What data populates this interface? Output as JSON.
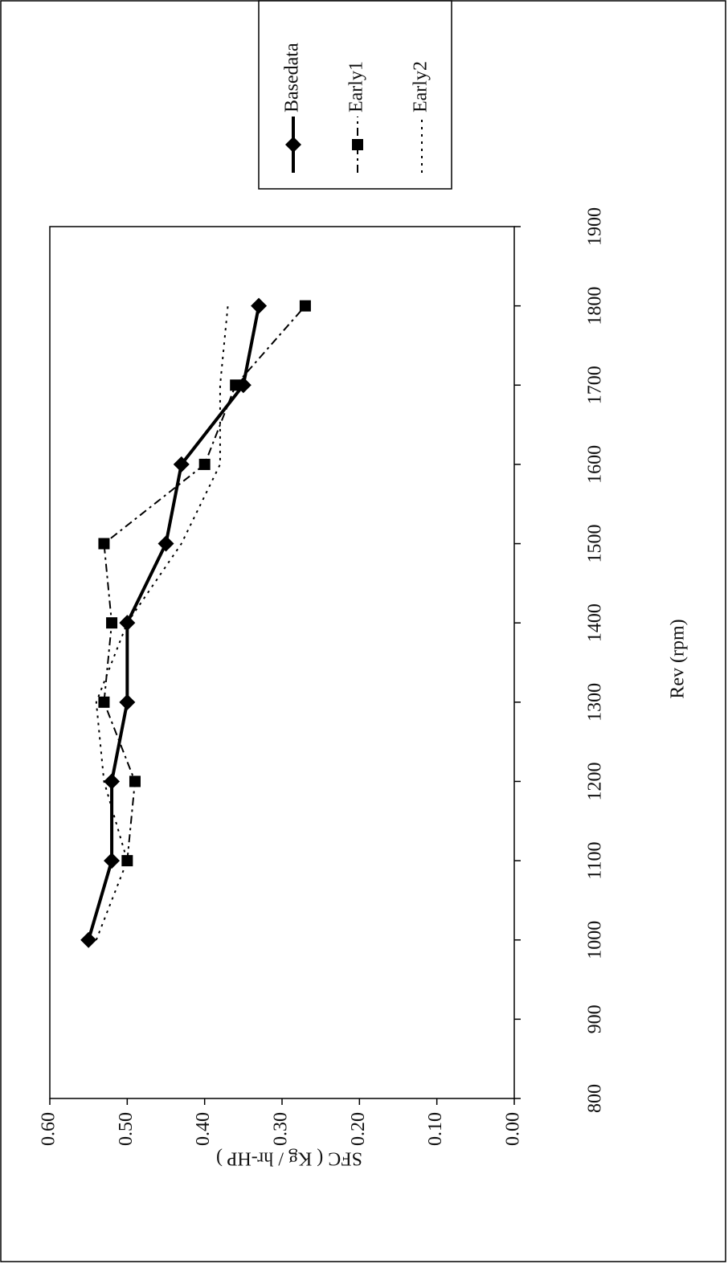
{
  "chart_data": {
    "type": "line",
    "x_label": "Rev (rpm)",
    "y_label": "SFC ( Kg / hr-HP )",
    "x": [
      1000,
      1100,
      1200,
      1300,
      1400,
      1500,
      1600,
      1700,
      1800
    ],
    "xlim": [
      800,
      1900
    ],
    "xticks": [
      800,
      900,
      1000,
      1100,
      1200,
      1300,
      1400,
      1500,
      1600,
      1700,
      1800,
      1900
    ],
    "ylim": [
      0,
      0.6
    ],
    "yticks": [
      {
        "value": 0,
        "label": "0.00"
      },
      {
        "value": 0.1,
        "label": "0.10"
      },
      {
        "value": 0.2,
        "label": "0.20"
      },
      {
        "value": 0.3,
        "label": "0.30"
      },
      {
        "value": 0.4,
        "label": "0.40"
      },
      {
        "value": 0.5,
        "label": "0.50"
      },
      {
        "value": 0.6,
        "label": "0.60"
      }
    ],
    "series": [
      {
        "name": "Basedata",
        "color": "#000000",
        "style": "solid",
        "marker": "diamond",
        "values": [
          0.55,
          0.52,
          0.52,
          0.5,
          0.5,
          0.45,
          0.43,
          0.35,
          0.33
        ]
      },
      {
        "name": "Early1",
        "color": "#000000",
        "style": "dashdot",
        "marker": "square",
        "values": [
          null,
          0.5,
          0.49,
          0.53,
          0.52,
          0.53,
          0.4,
          0.36,
          0.27
        ]
      },
      {
        "name": "Early2",
        "color": "#000000",
        "style": "dotted",
        "marker": "none",
        "values": [
          0.54,
          0.5,
          0.53,
          0.54,
          0.5,
          0.43,
          0.38,
          0.38,
          0.37
        ]
      }
    ]
  }
}
